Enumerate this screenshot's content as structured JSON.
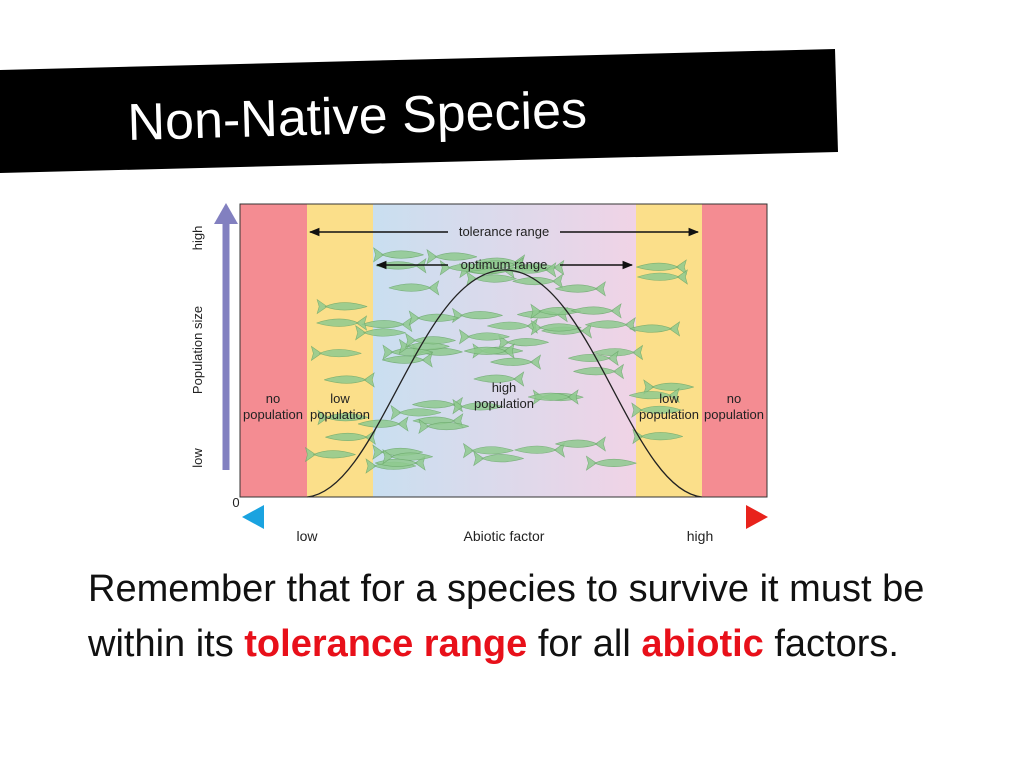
{
  "title": "Non-Native Species",
  "diagram": {
    "y_axis": {
      "label": "Population size",
      "high": "high",
      "low": "low",
      "zero": "0"
    },
    "x_axis": {
      "label": "Abiotic factor",
      "low": "low",
      "high": "high"
    },
    "ranges": {
      "tolerance": "tolerance range",
      "optimum": "optimum range"
    },
    "zones": [
      [
        "no",
        "population"
      ],
      [
        "low",
        "population"
      ],
      [
        "high",
        "population"
      ],
      [
        "low",
        "population"
      ],
      [
        "no",
        "population"
      ]
    ]
  },
  "body": {
    "parts": [
      {
        "text": "Remember that for a species to survive it must be within its "
      },
      {
        "text": "tolerance range",
        "highlight": true
      },
      {
        "text": " for all "
      },
      {
        "text": "abiotic",
        "highlight": true
      },
      {
        "text": " factors."
      }
    ]
  }
}
